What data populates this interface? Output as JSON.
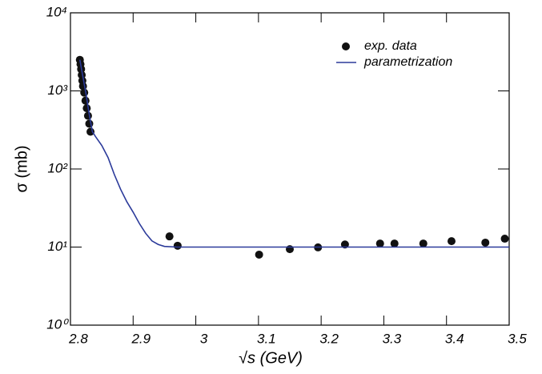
{
  "chart_data": {
    "type": "scatter",
    "x_label": "√s (GeV)",
    "y_label": "σ (mb)",
    "xlim": [
      2.8,
      3.5
    ],
    "xticks": [
      2.8,
      2.9,
      3,
      3.1,
      3.2,
      3.3,
      3.4,
      3.5
    ],
    "ylim": [
      1,
      10000
    ],
    "log_y": true,
    "yticks": [
      {
        "value": 1,
        "label": "10⁰"
      },
      {
        "value": 10,
        "label": "10¹"
      },
      {
        "value": 100,
        "label": "10²"
      },
      {
        "value": 1000,
        "label": "10³"
      },
      {
        "value": 10000,
        "label": "10⁴"
      }
    ],
    "legend": "top-right",
    "series": [
      {
        "name": "exp. data",
        "type": "scatter",
        "color": "#111111",
        "x": [
          2.815,
          2.816,
          2.817,
          2.818,
          2.819,
          2.82,
          2.822,
          2.824,
          2.826,
          2.828,
          2.83,
          2.832,
          2.958,
          2.971,
          3.101,
          3.15,
          3.195,
          3.238,
          3.294,
          3.317,
          3.363,
          3.408,
          3.462,
          3.493
        ],
        "values": [
          2500,
          2200,
          1900,
          1600,
          1350,
          1150,
          950,
          750,
          600,
          480,
          380,
          300,
          13.7,
          10.4,
          8.0,
          9.4,
          9.9,
          10.8,
          11.1,
          11.1,
          11.1,
          11.9,
          11.4,
          12.8
        ]
      },
      {
        "name": "parametrization",
        "type": "line",
        "color": "#2b3a9a",
        "x": [
          2.815,
          2.82,
          2.825,
          2.83,
          2.835,
          2.84,
          2.85,
          2.86,
          2.87,
          2.88,
          2.89,
          2.9,
          2.91,
          2.92,
          2.93,
          2.94,
          2.95,
          2.97,
          3.5
        ],
        "values": [
          2500,
          1500,
          900,
          500,
          300,
          260,
          200,
          140,
          85,
          55,
          38,
          28,
          20,
          15,
          12,
          10.8,
          10.2,
          10,
          10
        ]
      }
    ]
  }
}
